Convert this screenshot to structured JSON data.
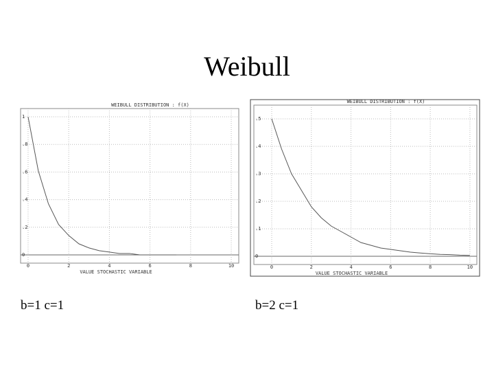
{
  "title": "Weibull",
  "chart_data": [
    {
      "type": "line",
      "title": "WEIBULL DISTRIBUTION : f(X)",
      "x_label": "VALUE STOCHASTIC VARIABLE",
      "caption": "b=1 c=1",
      "x": [
        0,
        0.5,
        1,
        1.5,
        2,
        2.5,
        3,
        3.5,
        4,
        4.5,
        5,
        5.5,
        6,
        6.5,
        7,
        7.3
      ],
      "series": [
        {
          "color": "#555555",
          "values": [
            1,
            0.61,
            0.37,
            0.22,
            0.14,
            0.08,
            0.05,
            0.03,
            0.02,
            0.01,
            0.01,
            0,
            0,
            0,
            0,
            0
          ]
        }
      ],
      "xlim": [
        -0.37,
        10.37
      ],
      "ylim": [
        -0.06,
        1.06
      ],
      "xticks": [
        0,
        2,
        4,
        6,
        8,
        10
      ],
      "yticks": [
        0,
        {
          "value": 0.2,
          "label": ".2"
        },
        {
          "value": 0.4,
          "label": ".4"
        },
        {
          "value": 0.6,
          "label": ".6"
        },
        {
          "value": 0.8,
          "label": ".8"
        },
        1
      ],
      "grid": true
    },
    {
      "type": "line",
      "title": "WEIBULL DISTRIBUTION : f(X)",
      "x_label": "VALUE STOCHASTIC VARIABLE",
      "caption": "b=2 c=1",
      "x": [
        0,
        0.5,
        1,
        1.5,
        2,
        2.5,
        3,
        3.5,
        4,
        4.5,
        5,
        5.5,
        6,
        6.5,
        7,
        7.5,
        8,
        8.5,
        9,
        9.5,
        10
      ],
      "series": [
        {
          "color": "#555555",
          "values": [
            0.5,
            0.39,
            0.3,
            0.24,
            0.18,
            0.14,
            0.11,
            0.09,
            0.07,
            0.05,
            0.04,
            0.03,
            0.025,
            0.02,
            0.015,
            0.012,
            0.009,
            0.007,
            0.006,
            0.004,
            0.003
          ]
        }
      ],
      "xlim": [
        -0.9,
        10.35
      ],
      "ylim": [
        -0.03,
        0.55
      ],
      "xticks": [
        0,
        2,
        4,
        6,
        8,
        10
      ],
      "yticks": [
        0,
        {
          "value": 0.1,
          "label": ".1"
        },
        {
          "value": 0.2,
          "label": ".2"
        },
        {
          "value": 0.3,
          "label": ".3"
        },
        {
          "value": 0.4,
          "label": ".4"
        },
        {
          "value": 0.5,
          "label": ".5"
        }
      ],
      "grid": true
    }
  ]
}
